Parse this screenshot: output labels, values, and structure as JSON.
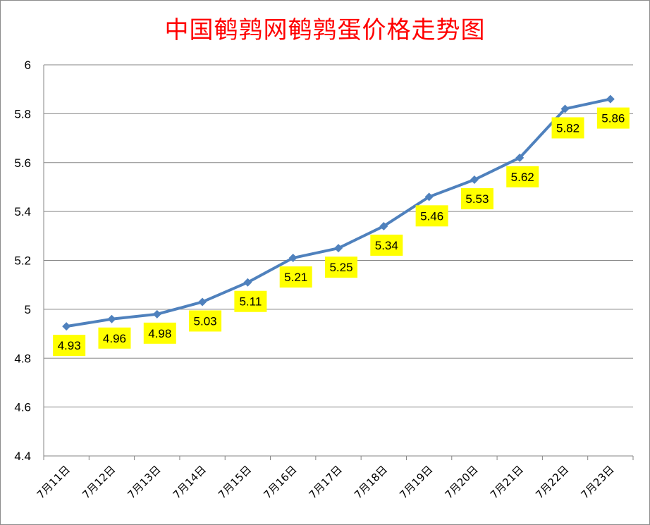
{
  "chart_data": {
    "type": "line",
    "title": "中国鹌鹑网鹌鹑蛋价格走势图",
    "xlabel": "",
    "ylabel": "",
    "categories": [
      "7月11日",
      "7月12日",
      "7月13日",
      "7月14日",
      "7月15日",
      "7月16日",
      "7月17日",
      "7月18日",
      "7月19日",
      "7月20日",
      "7月21日",
      "7月22日",
      "7月23日"
    ],
    "series": [
      {
        "values": [
          4.93,
          4.96,
          4.98,
          5.03,
          5.11,
          5.21,
          5.25,
          5.34,
          5.46,
          5.53,
          5.62,
          5.82,
          5.86
        ]
      }
    ],
    "data_labels": [
      "4.93",
      "4.96",
      "4.98",
      "5.03",
      "5.11",
      "5.21",
      "5.25",
      "5.34",
      "5.46",
      "5.53",
      "5.62",
      "5.82",
      "5.86"
    ],
    "ylim": [
      4.4,
      6
    ],
    "yticks": [
      4.4,
      4.6,
      4.8,
      5,
      5.2,
      5.4,
      5.6,
      5.8,
      6
    ],
    "ytick_labels": [
      "4.4",
      "4.6",
      "4.8",
      "5",
      "5.2",
      "5.4",
      "5.6",
      "5.8",
      "6"
    ],
    "grid": true,
    "legend": "none",
    "colors": {
      "line": "#4f81bd",
      "title": "#ff0000",
      "label_bg": "#ffff00",
      "grid": "#868686"
    }
  }
}
